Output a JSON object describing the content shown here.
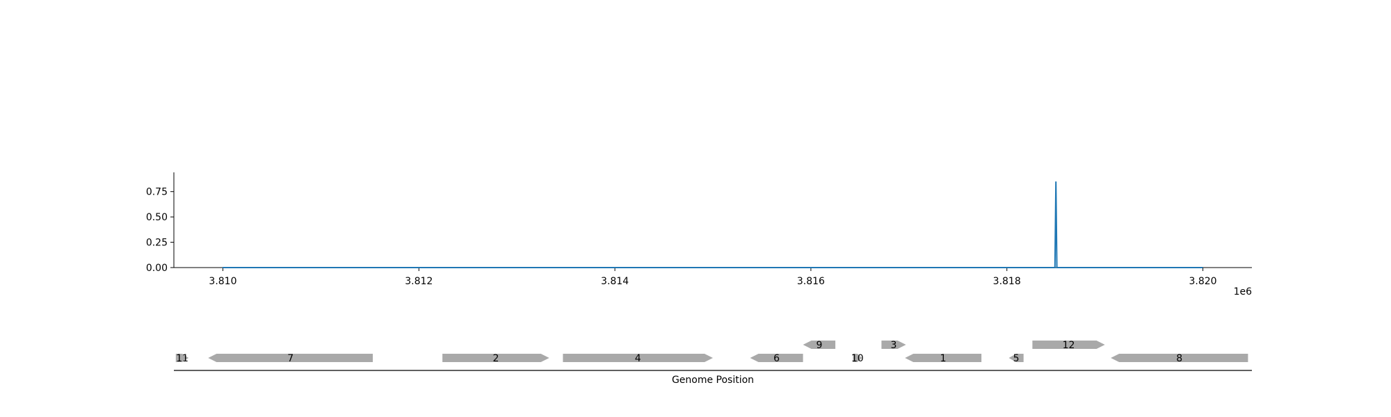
{
  "chart_data": [
    {
      "type": "line",
      "x": [
        3809995,
        3818490,
        3818500,
        3818510,
        3820000
      ],
      "y": [
        0.0,
        0.0,
        0.85,
        0.0,
        0.0
      ],
      "series": [
        {
          "name": "",
          "color": "#1f77b4"
        }
      ],
      "xlim": [
        3809500,
        3820500
      ],
      "ylim": [
        0,
        0.94
      ],
      "x_ticks": [
        3810000,
        3812000,
        3814000,
        3816000,
        3818000,
        3820000
      ],
      "x_tick_labels": [
        "3.810",
        "3.812",
        "3.814",
        "3.816",
        "3.818",
        "3.820"
      ],
      "y_ticks": [
        0.0,
        0.25,
        0.5,
        0.75
      ],
      "y_tick_labels": [
        "0.00",
        "0.25",
        "0.50",
        "0.75"
      ],
      "x_offset_label": "1e6",
      "grid": false
    },
    {
      "type": "gene-track",
      "xlabel": "Genome Position",
      "xlim": [
        3809500,
        3820500
      ],
      "feature_color": "#a9a9a9",
      "features": [
        {
          "label": "11",
          "start": 3809520,
          "end": 3809650,
          "strand": "+",
          "row": 0
        },
        {
          "label": "7",
          "start": 3809850,
          "end": 3811530,
          "strand": "-",
          "row": 0
        },
        {
          "label": "2",
          "start": 3812240,
          "end": 3813330,
          "strand": "+",
          "row": 0
        },
        {
          "label": "4",
          "start": 3813470,
          "end": 3815000,
          "strand": "+",
          "row": 0
        },
        {
          "label": "6",
          "start": 3815380,
          "end": 3815920,
          "strand": "-",
          "row": 0
        },
        {
          "label": "9",
          "start": 3815920,
          "end": 3816250,
          "strand": "-",
          "row": 1
        },
        {
          "label": "10",
          "start": 3816430,
          "end": 3816520,
          "strand": "+",
          "row": 0
        },
        {
          "label": "3",
          "start": 3816720,
          "end": 3816970,
          "strand": "+",
          "row": 1
        },
        {
          "label": "1",
          "start": 3816960,
          "end": 3817740,
          "strand": "-",
          "row": 0
        },
        {
          "label": "5",
          "start": 3818020,
          "end": 3818170,
          "strand": "-",
          "row": 0
        },
        {
          "label": "12",
          "start": 3818260,
          "end": 3819000,
          "strand": "+",
          "row": 1
        },
        {
          "label": "8",
          "start": 3819060,
          "end": 3820460,
          "strand": "-",
          "row": 0
        }
      ]
    }
  ]
}
